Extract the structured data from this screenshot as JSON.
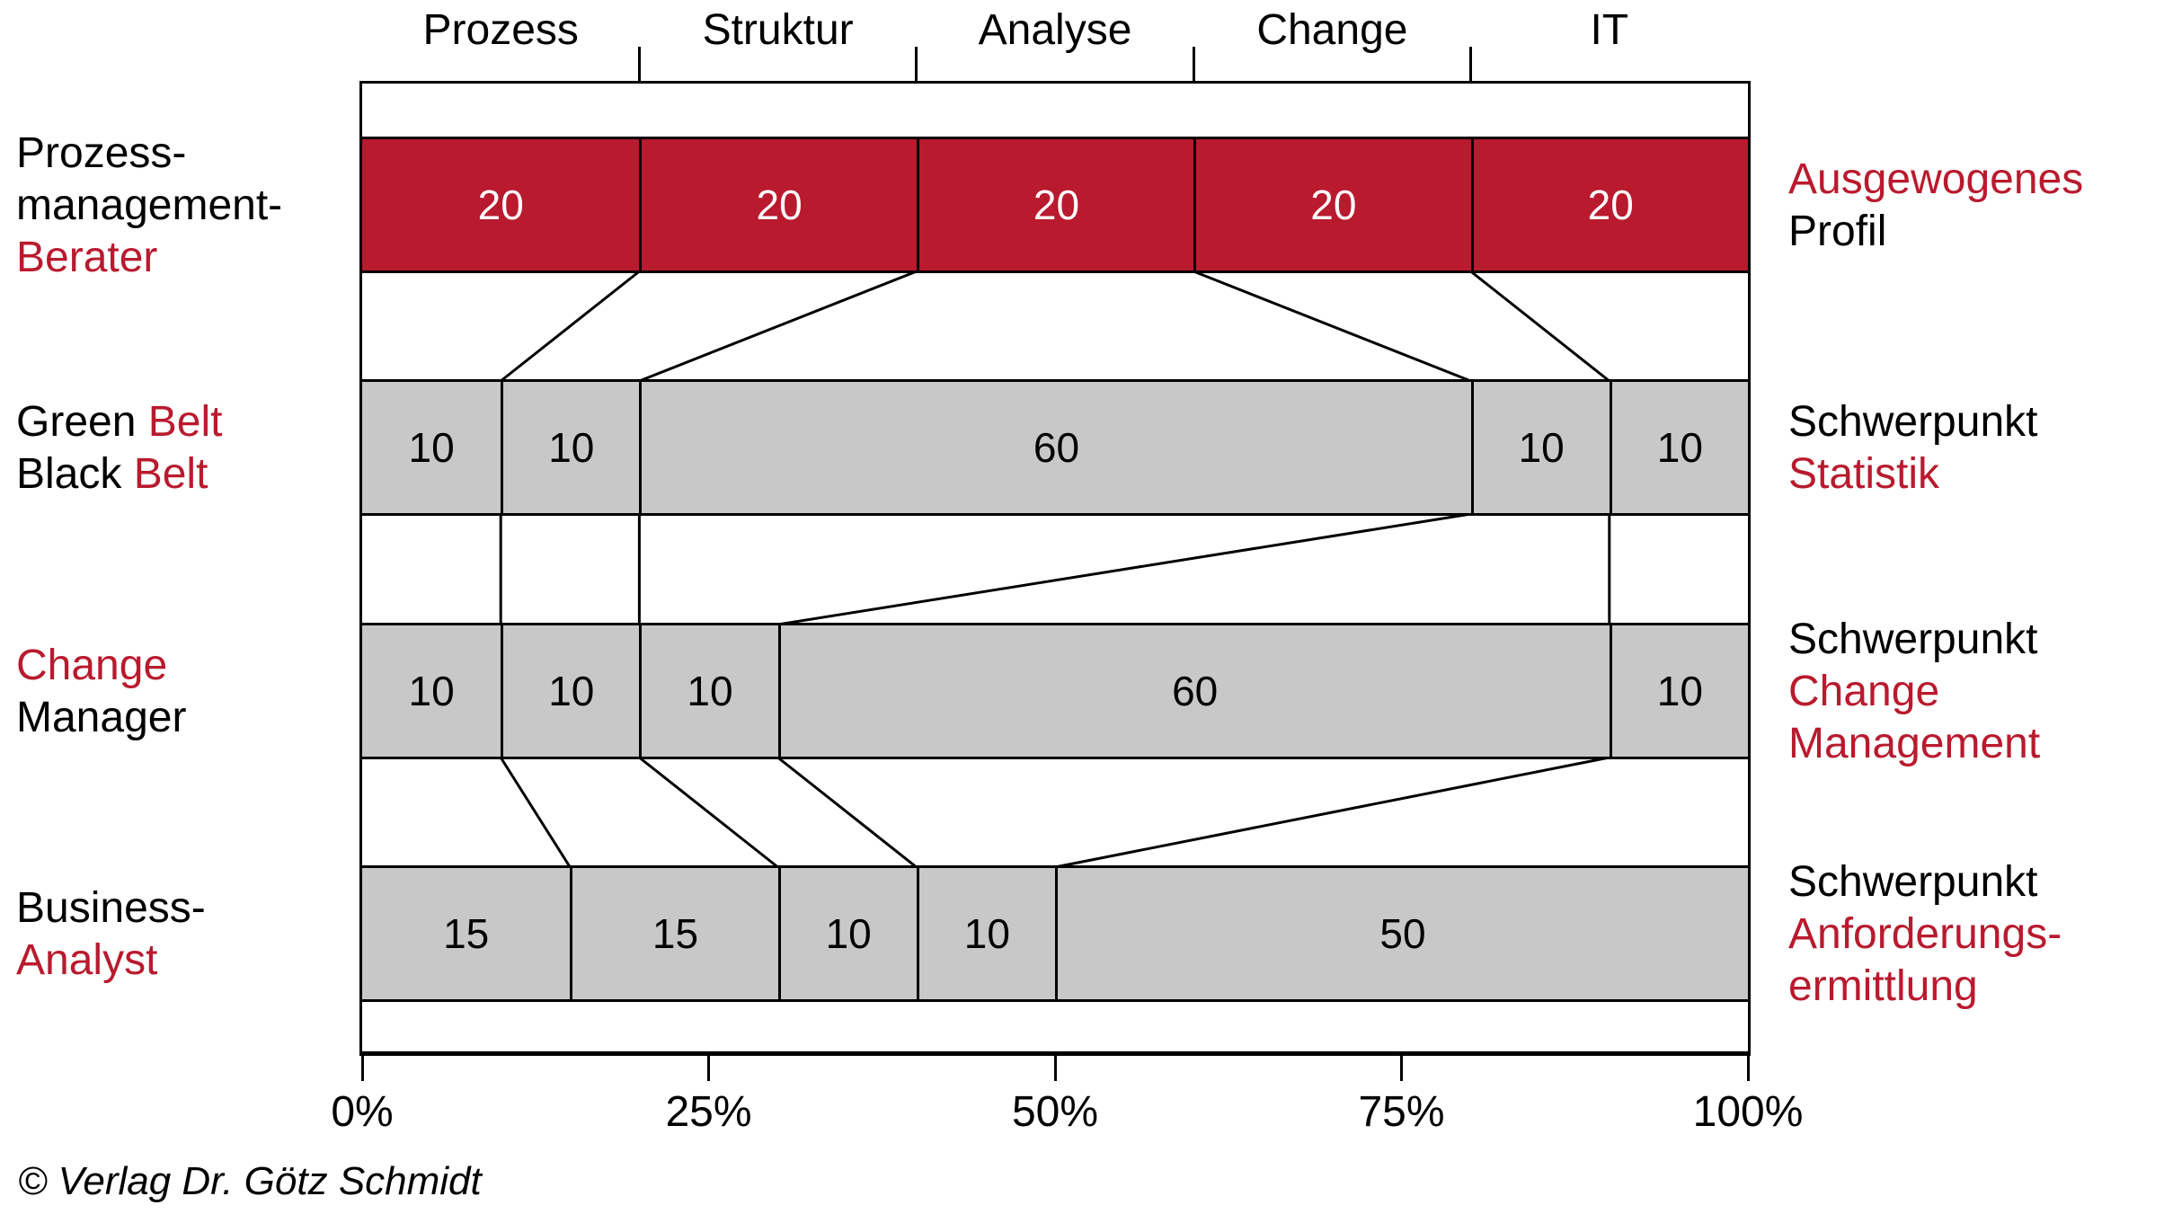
{
  "page": {
    "copyright": "© Verlag Dr. Götz Schmidt"
  },
  "colors": {
    "red": "#b91a2e",
    "gray": "#c8c8c8",
    "black": "#000000",
    "white": "#ffffff"
  },
  "chart_data": {
    "type": "bar",
    "subtype": "horizontal-100percent-stacked-profile-comparison",
    "categories": [
      "Prozess",
      "Struktur",
      "Analyse",
      "Change",
      "IT"
    ],
    "x_axis": {
      "tick_labels": [
        "0%",
        "25%",
        "50%",
        "75%",
        "100%"
      ],
      "range": [
        0,
        100
      ]
    },
    "layout_hints": {
      "grid": false,
      "legend": false,
      "connectors_between_rows": true,
      "column_separator_ticks_at": [
        20,
        40,
        60,
        80
      ]
    },
    "rows": [
      {
        "id": "prozessmanagement-berater",
        "left_label": [
          [
            {
              "t": "Prozess-",
              "c": "black"
            }
          ],
          [
            {
              "t": "management-",
              "c": "black"
            }
          ],
          [
            {
              "t": "Berater",
              "c": "red"
            }
          ]
        ],
        "right_label": [
          [
            {
              "t": "Ausgewogenes",
              "c": "red"
            }
          ],
          [
            {
              "t": "Profil",
              "c": "black"
            }
          ]
        ],
        "values": [
          20,
          20,
          20,
          20,
          20
        ],
        "bar_color": "red",
        "value_color": "white"
      },
      {
        "id": "green-belt-black-belt",
        "left_label": [
          [
            {
              "t": "Green ",
              "c": "black"
            },
            {
              "t": "Belt",
              "c": "red"
            }
          ],
          [
            {
              "t": "Black ",
              "c": "black"
            },
            {
              "t": "Belt",
              "c": "red"
            }
          ]
        ],
        "right_label": [
          [
            {
              "t": "Schwerpunkt",
              "c": "black"
            }
          ],
          [
            {
              "t": "Statistik",
              "c": "red"
            }
          ]
        ],
        "values": [
          10,
          10,
          60,
          10,
          10
        ],
        "bar_color": "gray",
        "value_color": "black"
      },
      {
        "id": "change-manager",
        "left_label": [
          [
            {
              "t": "Change",
              "c": "red"
            }
          ],
          [
            {
              "t": "Manager",
              "c": "black"
            }
          ]
        ],
        "right_label": [
          [
            {
              "t": "Schwerpunkt",
              "c": "black"
            }
          ],
          [
            {
              "t": "Change",
              "c": "red"
            }
          ],
          [
            {
              "t": "Management",
              "c": "red"
            }
          ]
        ],
        "values": [
          10,
          10,
          10,
          60,
          10
        ],
        "bar_color": "gray",
        "value_color": "black"
      },
      {
        "id": "business-analyst",
        "left_label": [
          [
            {
              "t": "Business-",
              "c": "black"
            }
          ],
          [
            {
              "t": "Analyst",
              "c": "red"
            }
          ]
        ],
        "right_label": [
          [
            {
              "t": "Schwerpunkt",
              "c": "black"
            }
          ],
          [
            {
              "t": "Anforderungs-",
              "c": "red"
            }
          ],
          [
            {
              "t": "ermittlung",
              "c": "red"
            }
          ]
        ],
        "values": [
          15,
          15,
          10,
          10,
          50
        ],
        "bar_color": "gray",
        "value_color": "black"
      }
    ]
  }
}
